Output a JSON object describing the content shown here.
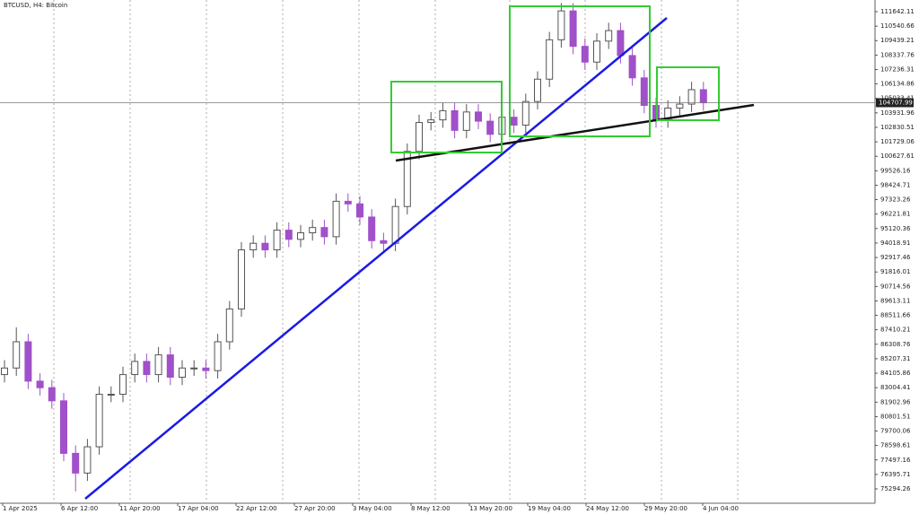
{
  "chart_data": {
    "type": "candlestick",
    "title": "BTCUSD, H4:  Bitcoin",
    "x_labels": [
      "1 Apr 2025",
      "6 Apr 12:00",
      "11 Apr 20:00",
      "17 Apr 04:00",
      "22 Apr 12:00",
      "27 Apr 20:00",
      "3 May 04:00",
      "8 May 12:00",
      "13 May 20:00",
      "19 May 04:00",
      "24 May 12:00",
      "29 May 20:00",
      "4 Jun 04:00"
    ],
    "open": [
      84000,
      84500,
      86500,
      83500,
      83000,
      82000,
      78000,
      76500,
      78500,
      82500,
      82500,
      84000,
      85000,
      84000,
      85500,
      83800,
      84500,
      84500,
      84300,
      86500,
      89000,
      93500,
      94000,
      93500,
      95000,
      94300,
      94800,
      95200,
      94500,
      97200,
      97000,
      96000,
      94200,
      94000,
      96800,
      101000,
      103200,
      103400,
      104100,
      102600,
      104000,
      103300,
      102300,
      103600,
      103000,
      104800,
      106500,
      109500,
      111700,
      109000,
      107800,
      109400,
      110200,
      108300,
      106600,
      104500,
      103400,
      104300,
      104600,
      105700
    ],
    "high": [
      85100,
      87600,
      87100,
      84100,
      83600,
      82600,
      78600,
      79100,
      83100,
      83100,
      84600,
      85600,
      85600,
      86100,
      86100,
      85100,
      85100,
      85100,
      87100,
      89600,
      94100,
      94600,
      94600,
      95600,
      95600,
      95400,
      95800,
      95800,
      97800,
      97800,
      97600,
      96600,
      94800,
      97400,
      101600,
      103800,
      104000,
      104700,
      104700,
      104600,
      104600,
      103900,
      104200,
      104200,
      105400,
      107100,
      110100,
      112300,
      112300,
      109600,
      110000,
      110800,
      110800,
      108900,
      107200,
      105100,
      104900,
      105200,
      106300,
      106300
    ],
    "low": [
      83400,
      83900,
      82900,
      82400,
      81400,
      77400,
      75100,
      75900,
      77900,
      81900,
      81900,
      83400,
      83400,
      83400,
      83200,
      83200,
      83900,
      83700,
      83700,
      85900,
      88400,
      92900,
      92900,
      92900,
      93700,
      93700,
      94200,
      93900,
      93900,
      96400,
      95400,
      93600,
      93400,
      93400,
      96200,
      100400,
      102600,
      102800,
      102000,
      102000,
      102700,
      101700,
      101700,
      102400,
      102400,
      104200,
      105900,
      108900,
      108400,
      107200,
      107200,
      108800,
      107700,
      106000,
      103900,
      102800,
      102800,
      103700,
      104000,
      104100
    ],
    "close": [
      84500,
      86500,
      83500,
      83000,
      82000,
      78000,
      76500,
      78500,
      82500,
      82500,
      84000,
      85000,
      84000,
      85500,
      83800,
      84500,
      84500,
      84300,
      86500,
      89000,
      93500,
      94000,
      93500,
      95000,
      94300,
      94800,
      95200,
      94500,
      97200,
      97000,
      96000,
      94200,
      94000,
      96800,
      101000,
      103200,
      103400,
      104100,
      102600,
      104000,
      103300,
      102300,
      103600,
      103000,
      104800,
      106500,
      109500,
      111700,
      109000,
      107800,
      109400,
      110200,
      108300,
      106600,
      104500,
      103400,
      104300,
      104600,
      105700,
      104700
    ],
    "up_color": "#555555",
    "down_color": "#a050c8",
    "ylim": [
      74269,
      112530
    ],
    "yticks": [
      111642.11,
      110540.66,
      109439.21,
      108337.76,
      107236.31,
      106134.86,
      105033.41,
      103931.96,
      102830.51,
      101729.06,
      100627.61,
      99526.16,
      98424.71,
      97323.26,
      96221.81,
      95120.36,
      94018.91,
      92917.46,
      91816.01,
      90714.56,
      89613.11,
      88511.66,
      87410.21,
      86308.76,
      85207.31,
      84105.86,
      83004.41,
      81902.96,
      80801.51,
      79700.06,
      78598.61,
      77497.16,
      76395.71,
      75294.26
    ],
    "current_price": 104707.99
  }
}
